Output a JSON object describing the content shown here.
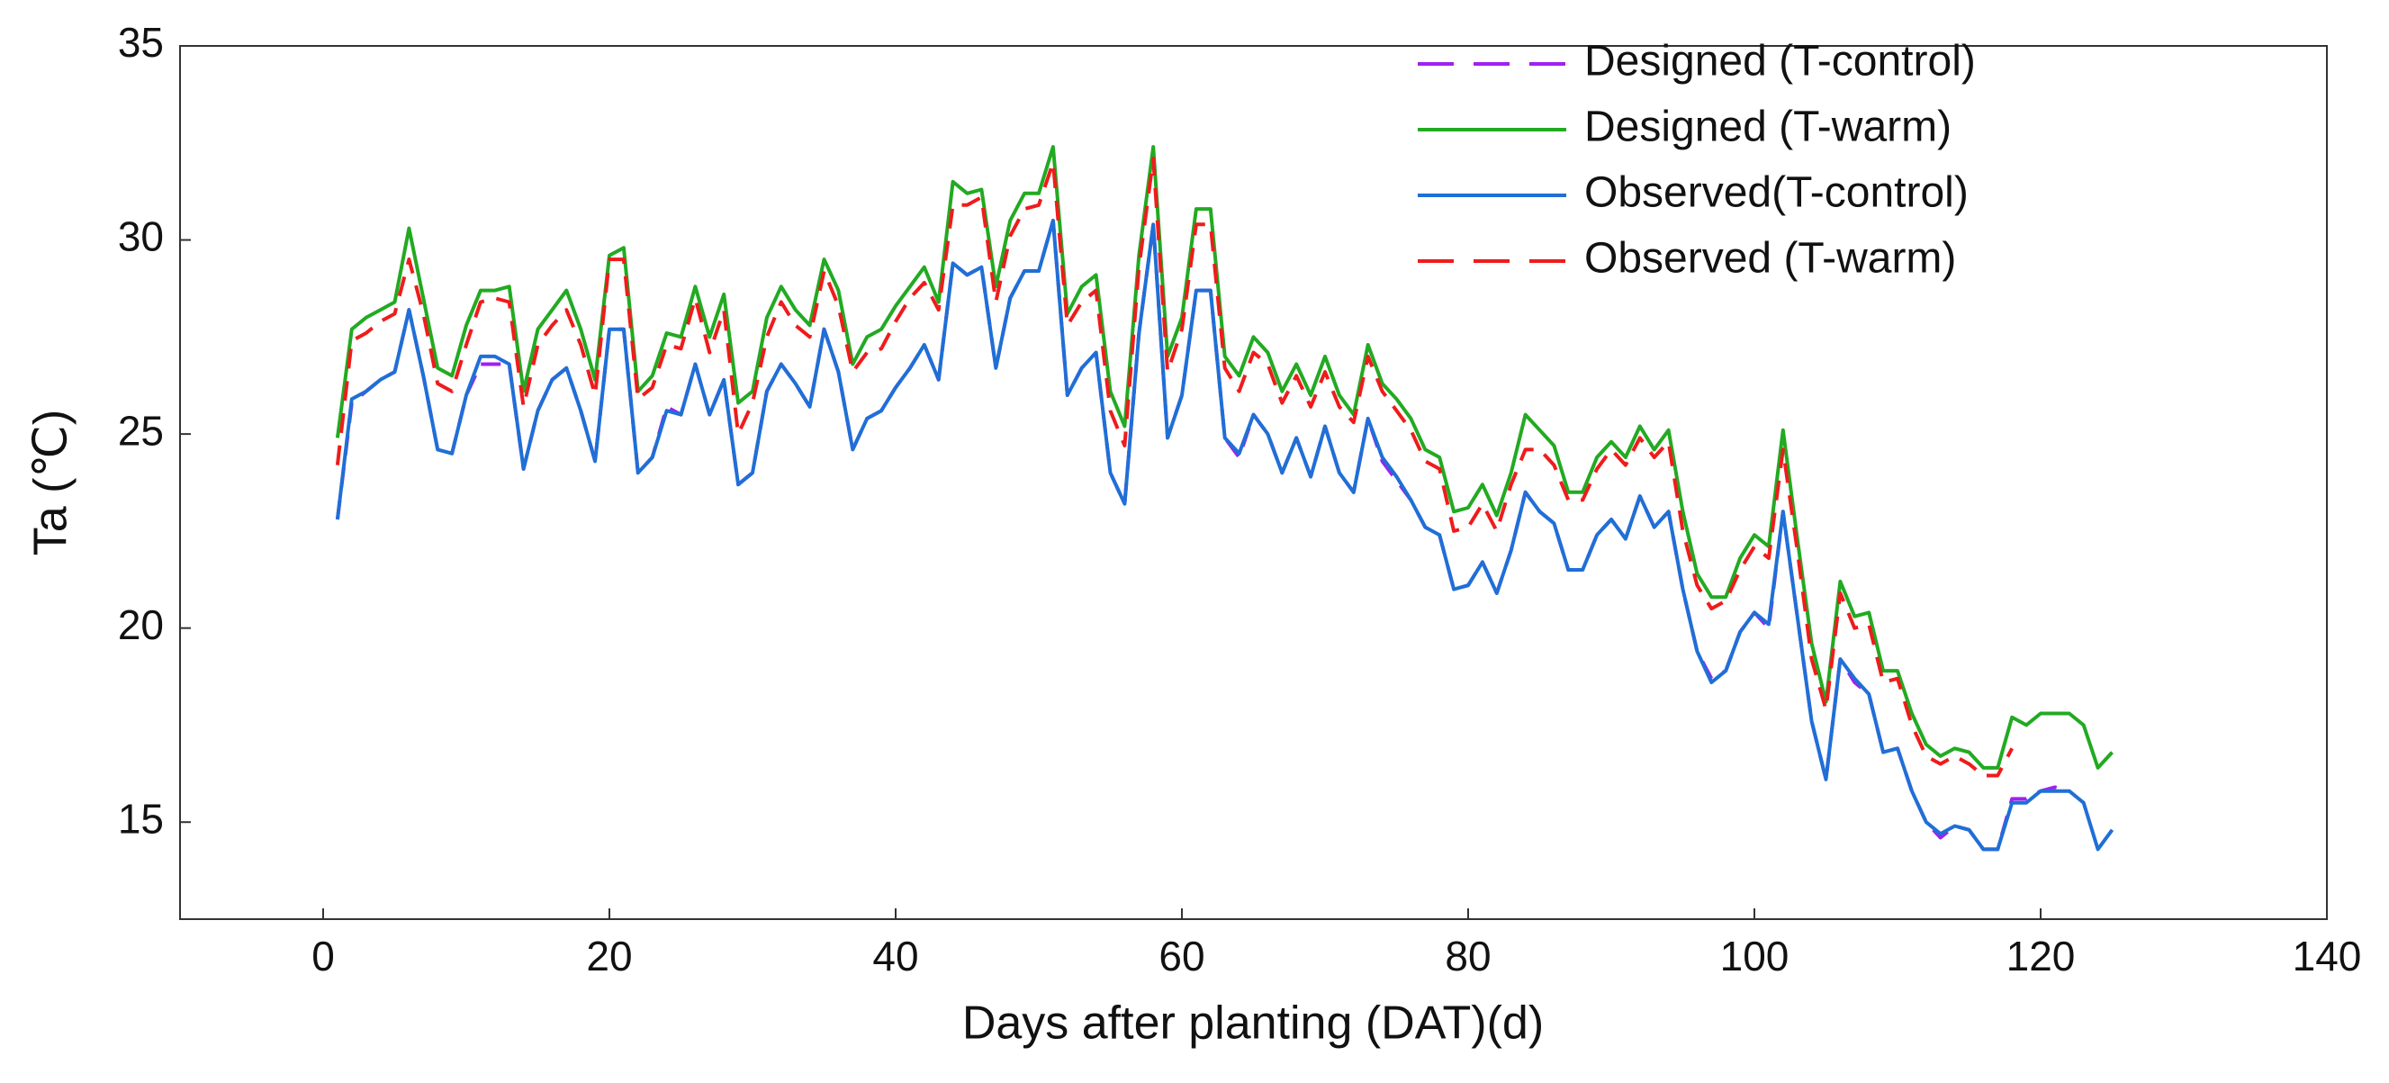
{
  "chart_data": {
    "type": "line",
    "xlabel": "Days after planting (DAT)(d)",
    "ylabel": "Ta (℃)",
    "legend": "upper right",
    "xlim": [
      -10,
      140
    ],
    "xticks": [
      0,
      20,
      40,
      60,
      80,
      100,
      120,
      140
    ],
    "ylim": [
      12.5,
      35
    ],
    "yticks": [
      15,
      20,
      25,
      30,
      35
    ],
    "x": [
      1,
      2,
      3,
      4,
      5,
      6,
      7,
      8,
      9,
      10,
      11,
      12,
      13,
      14,
      15,
      16,
      17,
      18,
      19,
      20,
      21,
      22,
      23,
      24,
      25,
      26,
      27,
      28,
      29,
      30,
      31,
      32,
      33,
      34,
      35,
      36,
      37,
      38,
      39,
      40,
      41,
      42,
      43,
      44,
      45,
      46,
      47,
      48,
      49,
      50,
      51,
      52,
      53,
      54,
      55,
      56,
      57,
      58,
      59,
      60,
      61,
      62,
      63,
      64,
      65,
      66,
      67,
      68,
      69,
      70,
      71,
      72,
      73,
      74,
      75,
      76,
      77,
      78,
      79,
      80,
      81,
      82,
      83,
      84,
      85,
      86,
      87,
      88,
      89,
      90,
      91,
      92,
      93,
      94,
      95,
      96,
      97,
      98,
      99,
      100,
      101,
      102,
      103,
      104,
      105,
      106,
      107,
      108,
      109,
      110,
      111,
      112,
      113,
      114,
      115,
      116,
      117,
      118,
      119,
      120,
      121,
      122,
      123,
      124,
      125
    ],
    "series": [
      {
        "name": "Designed (T-control)",
        "color": "#a020f0",
        "dash": true,
        "values": [
          22.8,
          25.8,
          26.1,
          26.4,
          26.6,
          28.2,
          26.5,
          24.6,
          24.5,
          26.0,
          26.8,
          26.8,
          26.8,
          24.1,
          25.6,
          26.4,
          26.7,
          25.6,
          24.3,
          27.7,
          27.7,
          24.0,
          24.4,
          25.7,
          25.5,
          26.8,
          25.5,
          26.4,
          23.7,
          24.0,
          26.1,
          26.8,
          26.3,
          25.7,
          27.7,
          26.6,
          24.6,
          25.4,
          25.6,
          26.2,
          26.7,
          27.3,
          26.4,
          29.4,
          29.1,
          29.3,
          26.7,
          28.5,
          29.2,
          29.2,
          30.5,
          26.0,
          26.7,
          27.1,
          24.0,
          23.2,
          27.6,
          30.4,
          24.9,
          26.0,
          28.7,
          28.7,
          24.9,
          24.4,
          25.5,
          25.0,
          24.0,
          24.9,
          23.9,
          25.2,
          24.0,
          23.5,
          25.4,
          24.3,
          23.8,
          23.3,
          22.6,
          22.4,
          21.0,
          21.1,
          21.7,
          20.9,
          22.0,
          23.5,
          23.0,
          22.7,
          21.5,
          21.5,
          22.4,
          22.8,
          22.3,
          23.4,
          22.6,
          23.0,
          21.0,
          19.4,
          18.7,
          18.9,
          19.9,
          20.4,
          20.0,
          23.0,
          20.3,
          17.6,
          16.1,
          19.2,
          18.6,
          18.3,
          16.8,
          16.9,
          15.8,
          15.0,
          14.6,
          14.9,
          14.8,
          14.3,
          14.3,
          15.6,
          15.6,
          15.8,
          15.9,
          15.8,
          null,
          null,
          null
        ]
      },
      {
        "name": "Designed (T-warm)",
        "color": "#22aa22",
        "dash": false,
        "values": [
          24.9,
          27.7,
          28.0,
          28.2,
          28.4,
          30.3,
          28.5,
          26.7,
          26.5,
          27.8,
          28.7,
          28.7,
          28.8,
          26.1,
          27.7,
          28.2,
          28.7,
          27.7,
          26.4,
          29.6,
          29.8,
          26.1,
          26.5,
          27.6,
          27.5,
          28.8,
          27.5,
          28.6,
          25.8,
          26.1,
          28.0,
          28.8,
          28.2,
          27.8,
          29.5,
          28.7,
          26.8,
          27.5,
          27.7,
          28.3,
          28.8,
          29.3,
          28.4,
          31.5,
          31.2,
          31.3,
          28.8,
          30.5,
          31.2,
          31.2,
          32.4,
          28.1,
          28.8,
          29.1,
          26.1,
          25.2,
          29.6,
          32.4,
          27.0,
          28.0,
          30.8,
          30.8,
          27.0,
          26.5,
          27.5,
          27.1,
          26.1,
          26.8,
          26.0,
          27.0,
          26.0,
          25.5,
          27.3,
          26.3,
          25.9,
          25.4,
          24.6,
          24.4,
          23.0,
          23.1,
          23.7,
          22.9,
          24.0,
          25.5,
          25.1,
          24.7,
          23.5,
          23.5,
          24.4,
          24.8,
          24.4,
          25.2,
          24.6,
          25.1,
          23.0,
          21.4,
          20.8,
          20.8,
          21.8,
          22.4,
          22.1,
          25.1,
          22.3,
          19.6,
          18.1,
          21.2,
          20.3,
          20.4,
          18.9,
          18.9,
          17.8,
          17.0,
          16.7,
          16.9,
          16.8,
          16.4,
          16.4,
          17.7,
          17.5,
          17.8,
          17.8,
          17.8,
          17.5,
          16.4,
          16.8
        ]
      },
      {
        "name": "Observed(T-control)",
        "color": "#1f6fd6",
        "dash": false,
        "values": [
          22.8,
          25.9,
          26.1,
          26.4,
          26.6,
          28.2,
          26.5,
          24.6,
          24.5,
          26.0,
          27.0,
          27.0,
          26.8,
          24.1,
          25.6,
          26.4,
          26.7,
          25.6,
          24.3,
          27.7,
          27.7,
          24.0,
          24.4,
          25.6,
          25.5,
          26.8,
          25.5,
          26.4,
          23.7,
          24.0,
          26.1,
          26.8,
          26.3,
          25.7,
          27.7,
          26.6,
          24.6,
          25.4,
          25.6,
          26.2,
          26.7,
          27.3,
          26.4,
          29.4,
          29.1,
          29.3,
          26.7,
          28.5,
          29.2,
          29.2,
          30.5,
          26.0,
          26.7,
          27.1,
          24.0,
          23.2,
          27.6,
          30.4,
          24.9,
          26.0,
          28.7,
          28.7,
          24.9,
          24.5,
          25.5,
          25.0,
          24.0,
          24.9,
          23.9,
          25.2,
          24.0,
          23.5,
          25.4,
          24.4,
          23.9,
          23.3,
          22.6,
          22.4,
          21.0,
          21.1,
          21.7,
          20.9,
          22.0,
          23.5,
          23.0,
          22.7,
          21.5,
          21.5,
          22.4,
          22.8,
          22.3,
          23.4,
          22.6,
          23.0,
          21.0,
          19.4,
          18.6,
          18.9,
          19.9,
          20.4,
          20.1,
          23.0,
          20.3,
          17.6,
          16.1,
          19.2,
          18.7,
          18.3,
          16.8,
          16.9,
          15.8,
          15.0,
          14.7,
          14.9,
          14.8,
          14.3,
          14.3,
          15.5,
          15.5,
          15.8,
          15.8,
          15.8,
          15.5,
          14.3,
          14.8
        ]
      },
      {
        "name": "Observed (T-warm)",
        "color": "#ee1c1c",
        "dash": true,
        "values": [
          24.2,
          27.4,
          27.6,
          27.9,
          28.1,
          29.5,
          28.1,
          26.3,
          26.1,
          27.3,
          28.4,
          28.5,
          28.4,
          25.7,
          27.3,
          27.8,
          28.2,
          27.3,
          26.0,
          29.5,
          29.5,
          25.9,
          26.2,
          27.3,
          27.2,
          28.5,
          27.1,
          28.2,
          25.0,
          25.8,
          27.5,
          28.4,
          27.8,
          27.5,
          29.2,
          28.3,
          26.6,
          27.1,
          27.2,
          27.9,
          28.5,
          28.9,
          28.2,
          30.9,
          30.9,
          31.1,
          28.4,
          30.1,
          30.8,
          30.9,
          32.0,
          27.8,
          28.4,
          28.7,
          25.6,
          24.7,
          29.3,
          32.1,
          26.6,
          27.7,
          30.4,
          30.4,
          26.7,
          26.1,
          27.1,
          26.8,
          25.8,
          26.5,
          25.7,
          26.6,
          25.7,
          25.3,
          27.0,
          26.1,
          25.6,
          25.1,
          24.3,
          24.1,
          22.5,
          22.6,
          23.2,
          22.5,
          23.7,
          24.6,
          24.6,
          24.2,
          23.3,
          23.3,
          24.1,
          24.6,
          24.2,
          24.9,
          24.4,
          24.8,
          22.5,
          21.1,
          20.5,
          20.7,
          21.5,
          22.1,
          21.8,
          24.6,
          22.0,
          19.2,
          17.9,
          20.9,
          20.0,
          20.1,
          18.6,
          18.7,
          17.5,
          16.7,
          16.5,
          16.7,
          16.5,
          16.2,
          16.2,
          16.9,
          null,
          null,
          null,
          null,
          null,
          null,
          null
        ]
      }
    ]
  }
}
